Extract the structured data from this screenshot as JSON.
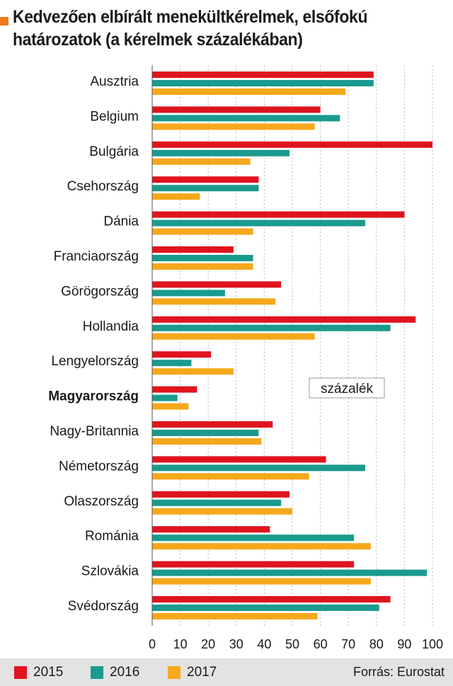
{
  "title": "Kedvezően elbírált menekültkérelmek, elsőfokú határozatok (a kérelmek százalékában)",
  "colors": {
    "2015": "#e0141e",
    "2016": "#1a9a8e",
    "2017": "#f5a81c",
    "title_marker": "#f07a1e",
    "footer_bg": "#e3e3e3"
  },
  "unit_label": "százalék",
  "highlight_category": "Magyarország",
  "chart_data": {
    "type": "bar",
    "orientation": "horizontal",
    "categories": [
      "Ausztria",
      "Belgium",
      "Bulgária",
      "Csehország",
      "Dánia",
      "Franciaország",
      "Görögország",
      "Hollandia",
      "Lengyelország",
      "Magyarország",
      "Nagy-Britannia",
      "Németország",
      "Olaszország",
      "Románia",
      "Szlovákia",
      "Svédország"
    ],
    "series": [
      {
        "name": "2015",
        "color": "#e0141e",
        "values": [
          79,
          60,
          100,
          38,
          90,
          29,
          46,
          94,
          21,
          16,
          43,
          62,
          49,
          42,
          72,
          85
        ]
      },
      {
        "name": "2016",
        "color": "#1a9a8e",
        "values": [
          79,
          67,
          49,
          38,
          76,
          36,
          26,
          85,
          14,
          9,
          38,
          76,
          46,
          72,
          98,
          81
        ]
      },
      {
        "name": "2017",
        "color": "#f5a81c",
        "values": [
          69,
          58,
          35,
          17,
          36,
          36,
          44,
          58,
          29,
          13,
          39,
          56,
          50,
          78,
          78,
          59
        ]
      }
    ],
    "xlim": [
      0,
      100
    ],
    "xticks": [
      0,
      10,
      20,
      30,
      40,
      50,
      60,
      70,
      80,
      90,
      100
    ],
    "grid": true,
    "legend_position": "bottom"
  },
  "footer": {
    "legend": [
      {
        "label": "2015",
        "color": "#e0141e"
      },
      {
        "label": "2016",
        "color": "#1a9a8e"
      },
      {
        "label": "2017",
        "color": "#f5a81c"
      }
    ],
    "source": "Forrás: Eurostat"
  }
}
